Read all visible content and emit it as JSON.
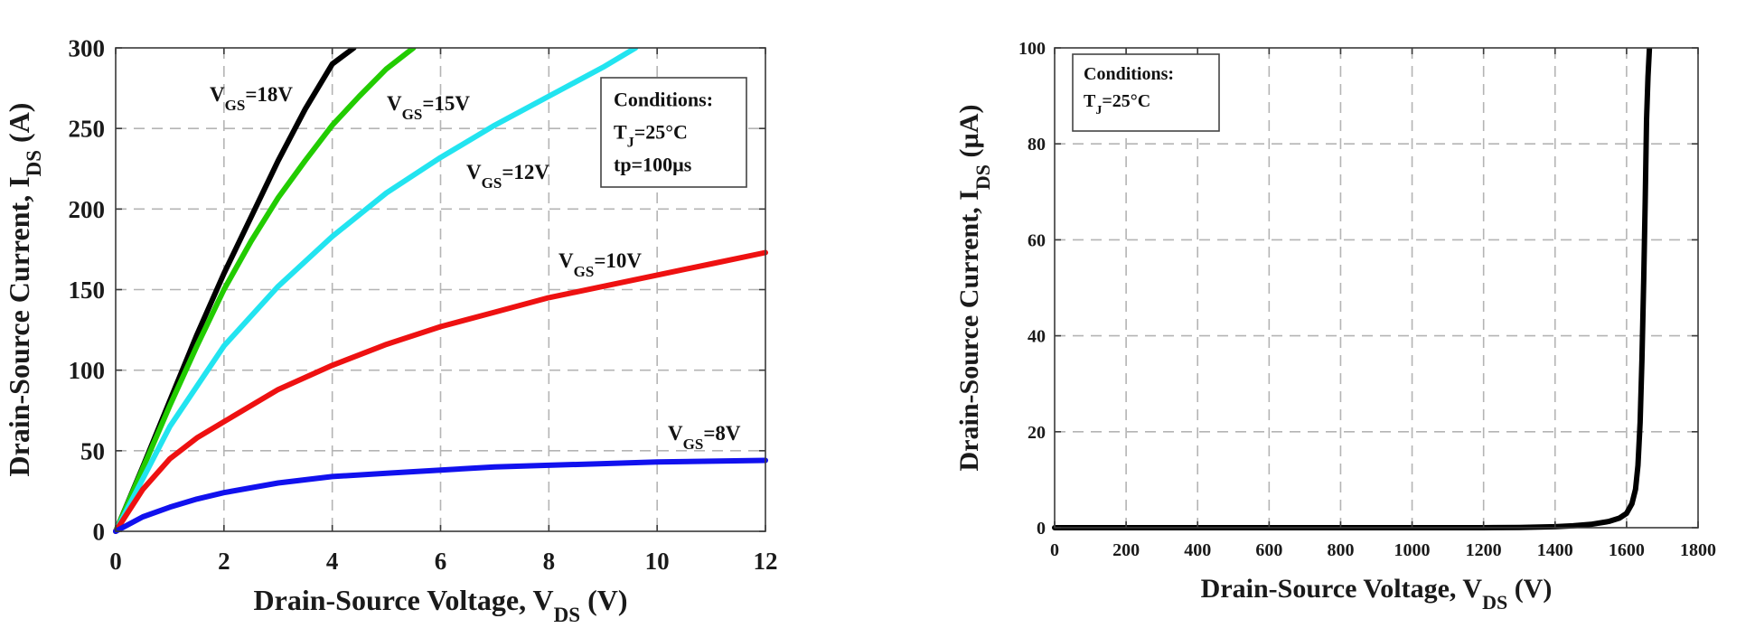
{
  "chart_data": [
    {
      "type": "line",
      "title": "",
      "xlabel": {
        "main": "Drain-Source Voltage, V",
        "sub": "DS",
        "unit": " (V)"
      },
      "ylabel": {
        "main": "Drain-Source Current, I",
        "sub": "DS",
        "unit": " (A)"
      },
      "xlim": [
        0,
        12
      ],
      "ylim": [
        0,
        300
      ],
      "xticks": [
        "0",
        "2",
        "4",
        "6",
        "8",
        "10",
        "12"
      ],
      "yticks": [
        "0",
        "50",
        "100",
        "150",
        "200",
        "250",
        "300"
      ],
      "grid": true,
      "conditions": [
        "Conditions:",
        {
          "main": "T",
          "sub": "J",
          "rest": "=25°C"
        },
        "tp=100µs"
      ],
      "series": [
        {
          "label": {
            "main": "V",
            "sub": "GS",
            "rest": "=18V"
          },
          "color": "#000000",
          "x": [
            0,
            0.5,
            1,
            1.5,
            2,
            2.5,
            3,
            3.5,
            4,
            4.4
          ],
          "y": [
            0,
            40,
            81,
            122,
            160,
            195,
            230,
            262,
            290,
            300
          ]
        },
        {
          "label": {
            "main": "V",
            "sub": "GS",
            "rest": "=15V"
          },
          "color": "#22cc00",
          "x": [
            0,
            0.5,
            1,
            1.5,
            2,
            2.5,
            3,
            3.5,
            4,
            4.5,
            5,
            5.5
          ],
          "y": [
            0,
            39,
            78,
            115,
            150,
            180,
            207,
            230,
            252,
            270,
            287,
            300
          ]
        },
        {
          "label": {
            "main": "V",
            "sub": "GS",
            "rest": "=12V"
          },
          "color": "#22e4f0",
          "x": [
            0,
            1,
            2,
            3,
            4,
            5,
            6,
            7,
            8,
            9,
            9.6
          ],
          "y": [
            0,
            65,
            115,
            152,
            183,
            210,
            232,
            252,
            270,
            288,
            300
          ]
        },
        {
          "label": {
            "main": "V",
            "sub": "GS",
            "rest": "=10V"
          },
          "color": "#ee1111",
          "x": [
            0,
            0.5,
            1,
            1.5,
            2,
            3,
            4,
            5,
            6,
            7,
            8,
            9,
            10,
            11,
            12
          ],
          "y": [
            0,
            26,
            45,
            58,
            68,
            88,
            103,
            116,
            127,
            136,
            145,
            152,
            159,
            166,
            173
          ]
        },
        {
          "label": {
            "main": "V",
            "sub": "GS",
            "rest": "=8V"
          },
          "color": "#1111ee",
          "x": [
            0,
            0.5,
            1,
            1.5,
            2,
            3,
            4,
            5,
            6,
            7,
            8,
            9,
            10,
            11,
            12
          ],
          "y": [
            0,
            9,
            15,
            20,
            24,
            30,
            34,
            36,
            38,
            40,
            41,
            42,
            43,
            43.5,
            44
          ]
        }
      ]
    },
    {
      "type": "line",
      "title": "",
      "xlabel": {
        "main": "Drain-Source Voltage, V",
        "sub": "DS",
        "unit": " (V)"
      },
      "ylabel": {
        "main": "Drain-Source Current, I",
        "sub": "DS",
        "unit": " (µA)"
      },
      "xlim": [
        0,
        1800
      ],
      "ylim": [
        0,
        100
      ],
      "xticks": [
        "0",
        "200",
        "400",
        "600",
        "800",
        "1000",
        "1200",
        "1400",
        "1600",
        "1800"
      ],
      "yticks": [
        "0",
        "20",
        "40",
        "60",
        "80",
        "100"
      ],
      "grid": true,
      "conditions": [
        "Conditions:",
        {
          "main": "T",
          "sub": "J",
          "rest": "=25°C"
        }
      ],
      "series": [
        {
          "color": "#000000",
          "x": [
            0,
            200,
            400,
            600,
            800,
            1000,
            1200,
            1300,
            1400,
            1450,
            1500,
            1550,
            1580,
            1600,
            1615,
            1625,
            1632,
            1638,
            1643,
            1648,
            1652,
            1656,
            1660,
            1664
          ],
          "y": [
            0,
            0,
            0,
            0,
            0,
            0,
            0,
            0.05,
            0.2,
            0.4,
            0.7,
            1.3,
            2,
            3,
            5,
            8,
            13,
            22,
            35,
            52,
            68,
            85,
            94,
            100
          ]
        }
      ]
    }
  ]
}
